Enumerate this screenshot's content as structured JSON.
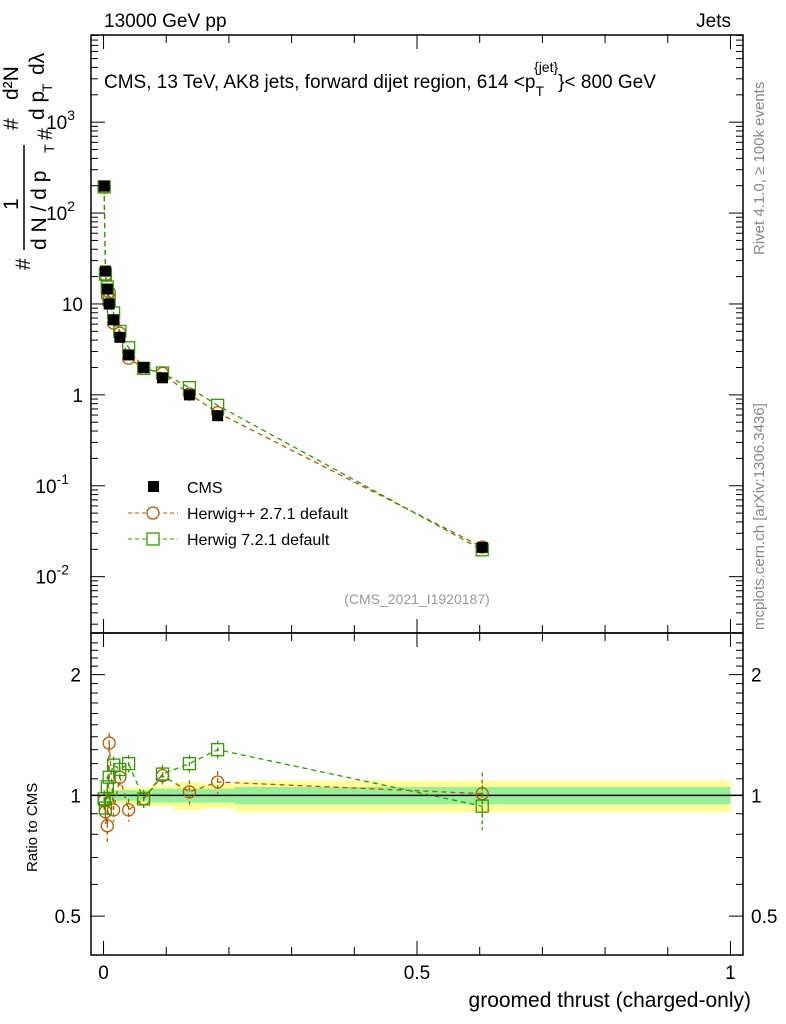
{
  "header": {
    "left": "13000 GeV pp",
    "right": "Jets"
  },
  "side": {
    "top": "Rivet 4.1.0, ≥ 100k events",
    "bottom": "mcplots.cern.ch [arXiv:1306.3436]"
  },
  "chart_data": {
    "type": "line",
    "title": "CMS, 13 TeV, AK8 jets, forward dijet region, 614 <p_T^{jet}< 800 GeV",
    "title_parts": {
      "pre": "CMS, 13 TeV, AK8 jets, forward dijet region, 614 <p",
      "sub": "T",
      "sup": "{jet}",
      "post": "}< 800 GeV"
    },
    "analysis": "(CMS_2021_I1920187)",
    "xlabel": "groomed thrust (charged-only)",
    "ylabel": "1/N dN/dp_T d²N/dp_T dλ",
    "ylabel_parts": {
      "hash": "#",
      "one": "1",
      "dn": "d N / d p",
      "t": "T",
      "d2n": "d²N",
      "dp": "d p",
      "dl": "dλ"
    },
    "ratio_ylabel": "Ratio to CMS",
    "xlim": [
      -0.02,
      1.02
    ],
    "ylim": [
      0.0024,
      9100
    ],
    "ratio_ylim": [
      0.4,
      2.54
    ],
    "xticks": [
      {
        "v": 0,
        "label": "0"
      },
      {
        "v": 0.5,
        "label": "0.5"
      },
      {
        "v": 1,
        "label": "1"
      }
    ],
    "yticks": [
      {
        "v": 0.01,
        "base": "10",
        "exp": "-2"
      },
      {
        "v": 0.1,
        "base": "10",
        "exp": "-1"
      },
      {
        "v": 1,
        "base": "1",
        "exp": ""
      },
      {
        "v": 10,
        "base": "10",
        "exp": ""
      },
      {
        "v": 100,
        "base": "10",
        "exp": "2"
      },
      {
        "v": 1000,
        "base": "10",
        "exp": "3"
      }
    ],
    "ratio_yticks": [
      {
        "v": 0.5,
        "label": "0.5"
      },
      {
        "v": 1,
        "label": "1"
      },
      {
        "v": 2,
        "label": "2"
      }
    ],
    "x": [
      0.001,
      0.003,
      0.006,
      0.009,
      0.016,
      0.026,
      0.04,
      0.064,
      0.094,
      0.137,
      0.182,
      0.604
    ],
    "bin_edges": [
      0,
      0.002,
      0.004,
      0.007,
      0.011,
      0.02,
      0.03,
      0.05,
      0.077,
      0.113,
      0.158,
      0.209,
      1.0
    ],
    "band_stat": [
      0.03,
      0.03,
      0.03,
      0.03,
      0.03,
      0.03,
      0.03,
      0.03,
      0.04,
      0.04,
      0.04,
      0.05
    ],
    "band_total": [
      0.04,
      0.04,
      0.04,
      0.04,
      0.04,
      0.04,
      0.05,
      0.05,
      0.06,
      0.08,
      0.07,
      0.09
    ],
    "series": [
      {
        "name": "CMS",
        "color": "#000000",
        "marker": "square-filled",
        "values": [
          198,
          23,
          14.6,
          10,
          6.7,
          4.3,
          2.75,
          2.0,
          1.54,
          1.0,
          0.59,
          0.021
        ]
      },
      {
        "name": "Herwig++ 2.7.1 default",
        "color": "#b35900",
        "marker": "circle",
        "ratio": [
          0.97,
          0.91,
          0.84,
          1.35,
          0.92,
          1.11,
          0.92,
          0.98,
          1.12,
          1.02,
          1.08,
          1.01
        ],
        "ratio_err": [
          0.05,
          0.06,
          0.08,
          0.08,
          0.06,
          0.06,
          0.06,
          0.05,
          0.06,
          0.07,
          0.07,
          0.13
        ]
      },
      {
        "name": "Herwig 7.2.1 default",
        "color": "#339900",
        "marker": "square-open",
        "ratio": [
          0.98,
          0.93,
          1.05,
          1.11,
          1.19,
          1.16,
          1.2,
          0.98,
          1.13,
          1.2,
          1.3,
          0.94
        ],
        "ratio_err": [
          0.05,
          0.06,
          0.07,
          0.07,
          0.06,
          0.07,
          0.06,
          0.05,
          0.06,
          0.06,
          0.07,
          0.12
        ]
      }
    ]
  }
}
